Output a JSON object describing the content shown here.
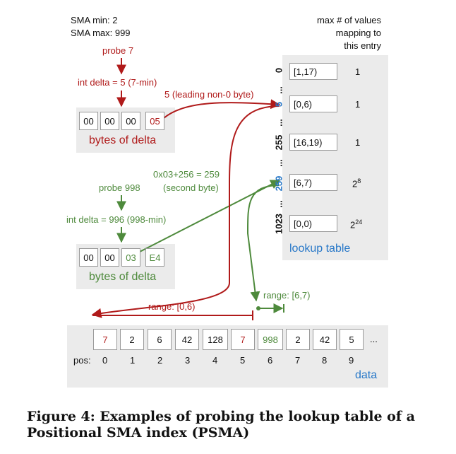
{
  "sma": {
    "min_label": "SMA min:  2",
    "max_label": "SMA max: 999"
  },
  "probe7": {
    "probe_label": "probe 7",
    "delta_label": "int delta = 5 (7-min)",
    "leading_label": "5 (leading non-0 byte)",
    "bytes": [
      "00",
      "00",
      "00",
      "05"
    ],
    "bytes_caption": "bytes of delta"
  },
  "probe998": {
    "calc_label": "0x03+256 = 259",
    "second_label": "(second byte)",
    "probe_label": "probe 998",
    "delta_label": "int delta = 996 (998-min)",
    "bytes": [
      "00",
      "00",
      "03",
      "E4"
    ],
    "bytes_caption": "bytes of delta"
  },
  "lookup": {
    "header_line1": "max # of values",
    "header_line2": "mapping to",
    "header_line3": "this entry",
    "index_labels": [
      "0",
      "5",
      "255",
      "259",
      "1023"
    ],
    "dots": "...",
    "ranges": [
      "[1,17)",
      "[0,6)",
      "[16,19)",
      "[6,7)",
      "[0,0)"
    ],
    "counts": [
      "1",
      "1",
      "1",
      "2",
      "2"
    ],
    "count_exponents": [
      "",
      "",
      "",
      "8",
      "24"
    ],
    "caption": "lookup table"
  },
  "ranges": {
    "red_label": "range: [0,6)",
    "green_label": "range: [6,7)"
  },
  "data_array": {
    "values": [
      "7",
      "2",
      "6",
      "42",
      "128",
      "7",
      "998",
      "2",
      "42",
      "5"
    ],
    "ellipsis": "...",
    "pos_label": "pos:",
    "positions": [
      "0",
      "1",
      "2",
      "3",
      "4",
      "5",
      "6",
      "7",
      "8",
      "9"
    ],
    "caption": "data"
  },
  "figure_caption": {
    "line1": "Figure 4: Examples of probing the lookup table of a",
    "line2": "Positional SMA index (PSMA)"
  },
  "colors": {
    "red": "#b01a1a",
    "green": "#4e8a3c",
    "blue": "#2878c8",
    "panel": "#ebebeb"
  }
}
